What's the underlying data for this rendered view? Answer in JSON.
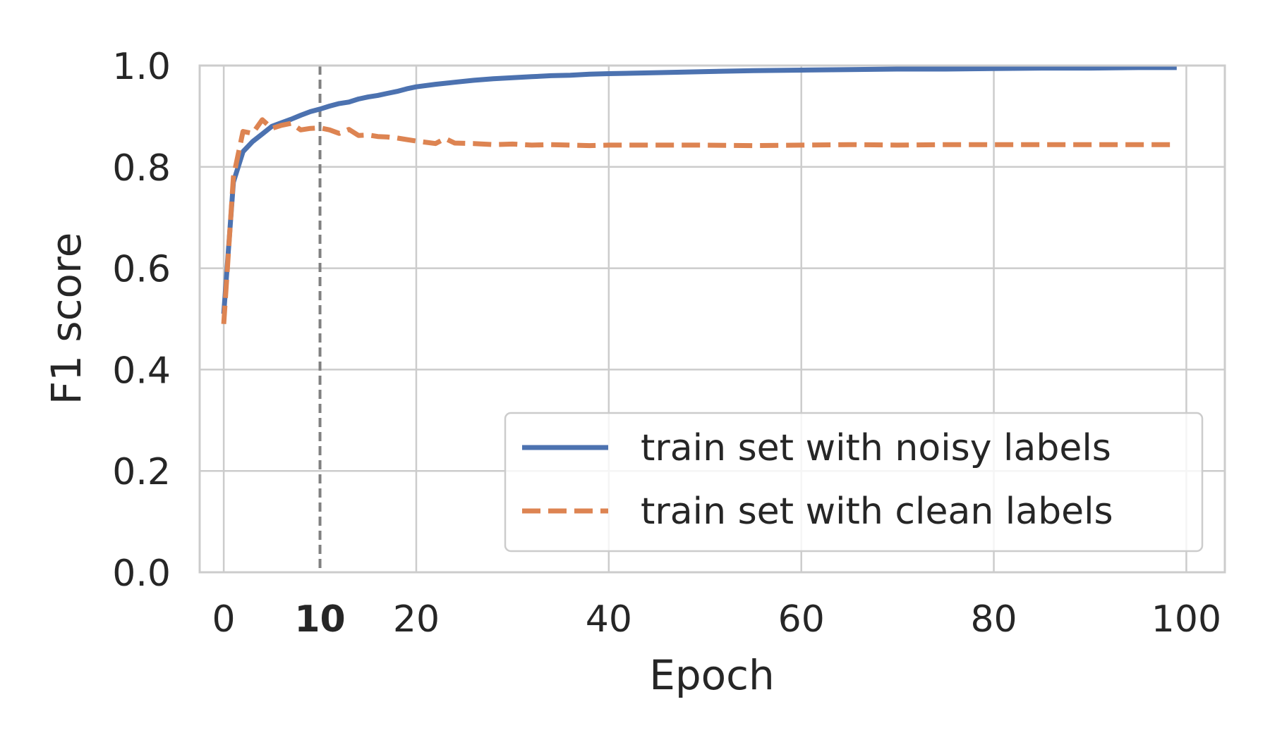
{
  "chart_data": {
    "type": "line",
    "xlabel": "Epoch",
    "ylabel": "F1 score",
    "xlim": [
      -2.5,
      104
    ],
    "ylim": [
      0.0,
      1.0
    ],
    "x_ticks": [
      {
        "value": 0,
        "label": "0",
        "bold": false
      },
      {
        "value": 10,
        "label": "10",
        "bold": true
      },
      {
        "value": 20,
        "label": "20",
        "bold": false
      },
      {
        "value": 40,
        "label": "40",
        "bold": false
      },
      {
        "value": 60,
        "label": "60",
        "bold": false
      },
      {
        "value": 80,
        "label": "80",
        "bold": false
      },
      {
        "value": 100,
        "label": "100",
        "bold": false
      }
    ],
    "y_ticks": [
      {
        "value": 0.0,
        "label": "0.0"
      },
      {
        "value": 0.2,
        "label": "0.2"
      },
      {
        "value": 0.4,
        "label": "0.4"
      },
      {
        "value": 0.6,
        "label": "0.6"
      },
      {
        "value": 0.8,
        "label": "0.8"
      },
      {
        "value": 1.0,
        "label": "1.0"
      }
    ],
    "grid": true,
    "legend_position": "lower-right",
    "vline": {
      "x": 10,
      "color": "#808080",
      "style": "dashed"
    },
    "series": [
      {
        "name": "train set with noisy labels",
        "color": "#4c72b0",
        "style": "solid",
        "x": [
          0,
          1,
          2,
          3,
          4,
          5,
          6,
          7,
          8,
          9,
          10,
          11,
          12,
          13,
          14,
          15,
          16,
          17,
          18,
          19,
          20,
          22,
          24,
          26,
          28,
          30,
          32,
          34,
          36,
          38,
          40,
          45,
          50,
          55,
          60,
          65,
          70,
          75,
          80,
          85,
          90,
          95,
          99
        ],
        "y": [
          0.51,
          0.77,
          0.83,
          0.85,
          0.865,
          0.88,
          0.887,
          0.894,
          0.902,
          0.909,
          0.914,
          0.92,
          0.925,
          0.928,
          0.934,
          0.938,
          0.941,
          0.945,
          0.949,
          0.954,
          0.958,
          0.963,
          0.967,
          0.971,
          0.974,
          0.976,
          0.978,
          0.98,
          0.981,
          0.983,
          0.984,
          0.986,
          0.988,
          0.99,
          0.991,
          0.992,
          0.993,
          0.993,
          0.994,
          0.995,
          0.995,
          0.996,
          0.996
        ]
      },
      {
        "name": "train set with clean labels",
        "color": "#dd8452",
        "style": "dashed",
        "x": [
          0,
          1,
          2,
          3,
          4,
          5,
          6,
          7,
          8,
          9,
          10,
          11,
          12,
          13,
          14,
          15,
          16,
          17,
          18,
          19,
          20,
          22,
          23,
          24,
          26,
          28,
          30,
          32,
          34,
          36,
          38,
          40,
          45,
          50,
          55,
          60,
          65,
          70,
          75,
          80,
          85,
          90,
          95,
          99
        ],
        "y": [
          0.49,
          0.78,
          0.87,
          0.866,
          0.893,
          0.876,
          0.882,
          0.886,
          0.873,
          0.876,
          0.877,
          0.873,
          0.866,
          0.874,
          0.862,
          0.863,
          0.86,
          0.859,
          0.857,
          0.854,
          0.851,
          0.846,
          0.856,
          0.847,
          0.846,
          0.844,
          0.845,
          0.843,
          0.844,
          0.843,
          0.842,
          0.843,
          0.843,
          0.843,
          0.842,
          0.843,
          0.844,
          0.843,
          0.844,
          0.844,
          0.844,
          0.844,
          0.844,
          0.844
        ]
      }
    ]
  }
}
